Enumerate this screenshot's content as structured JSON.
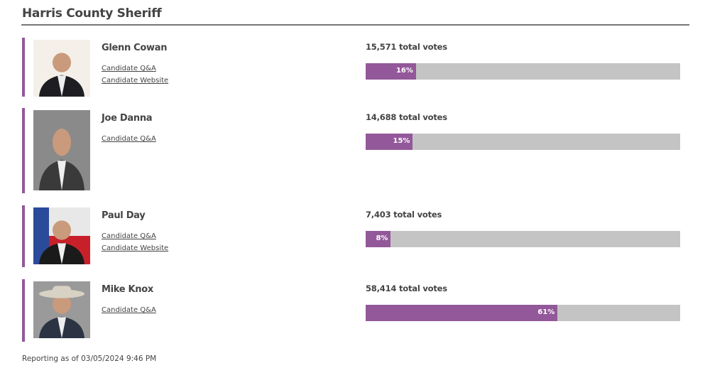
{
  "header": {
    "title": "Harris County Sheriff"
  },
  "candidates": [
    {
      "name": "Glenn Cowan",
      "links": [
        "Candidate Q&A",
        "Candidate Website"
      ],
      "votes": "15,571 total votes",
      "percent": 16,
      "percent_label": "16%"
    },
    {
      "name": "Joe Danna",
      "links": [
        "Candidate Q&A"
      ],
      "votes": "14,688 total votes",
      "percent": 15,
      "percent_label": "15%"
    },
    {
      "name": "Paul Day",
      "links": [
        "Candidate Q&A",
        "Candidate Website"
      ],
      "votes": "7,403 total votes",
      "percent": 8,
      "percent_label": "8%"
    },
    {
      "name": "Mike Knox",
      "links": [
        "Candidate Q&A"
      ],
      "votes": "58,414 total votes",
      "percent": 61,
      "percent_label": "61%"
    }
  ],
  "footer": "Reporting as of 03/05/2024 9:46 PM"
}
